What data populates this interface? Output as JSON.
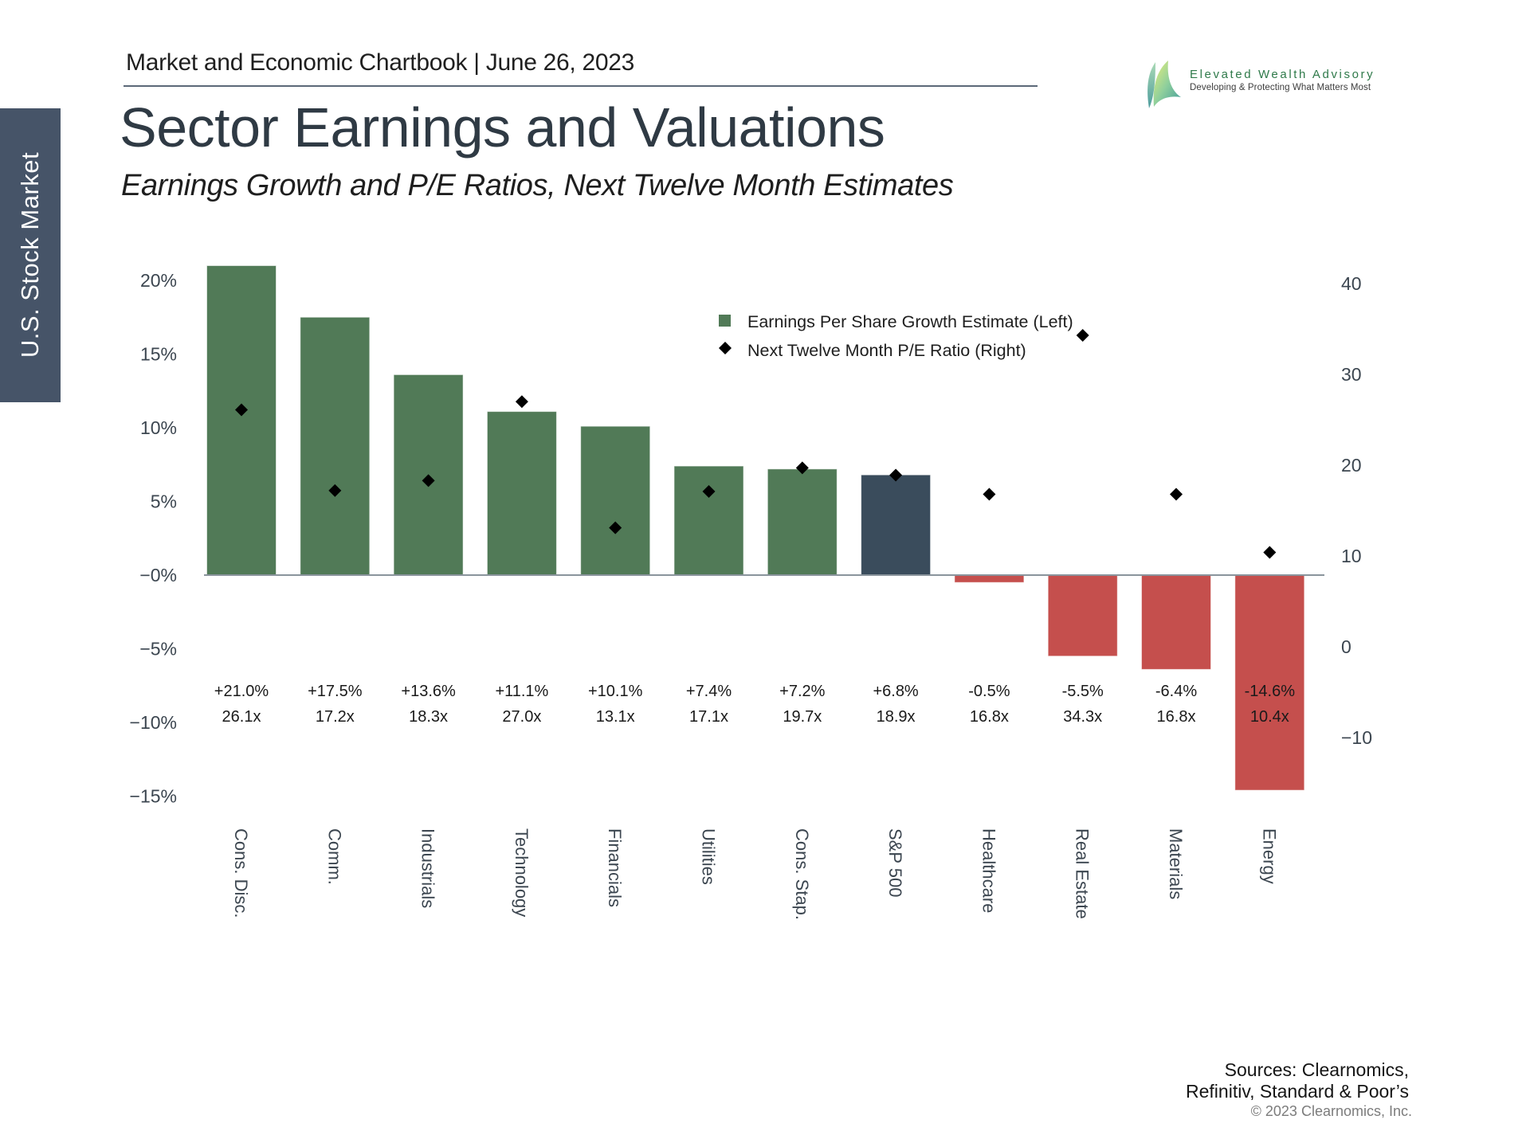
{
  "header": {
    "chartbook_line": "Market and Economic Chartbook | June 26, 2023",
    "title": "Sector Earnings and Valuations",
    "subtitle": "Earnings Growth and P/E Ratios, Next Twelve Month Estimates"
  },
  "side_tab": {
    "label": "U.S. Stock Market"
  },
  "brand": {
    "name": "Elevated Wealth Advisory",
    "tagline": "Developing & Protecting What Matters Most",
    "icon": "sail-logo-icon"
  },
  "footer": {
    "sources_line1": "Sources: Clearnomics,",
    "sources_line2": "Refinitiv, Standard & Poor’s",
    "copyright": "© 2023 Clearnomics, Inc."
  },
  "colors": {
    "positive_bar": "#517A57",
    "benchmark_bar": "#3A4C5C",
    "negative_bar": "#C54F4D",
    "marker": "#000000",
    "axis_line": "#8a949c",
    "side_tab": "#465468"
  },
  "chart_data": {
    "type": "bar",
    "title": "Sector Earnings and Valuations",
    "subtitle": "Earnings Growth and P/E Ratios, Next Twelve Month Estimates",
    "categories": [
      "Cons. Disc.",
      "Comm.",
      "Industrials",
      "Technology",
      "Financials",
      "Utilities",
      "Cons. Stap.",
      "S&P 500",
      "Healthcare",
      "Real Estate",
      "Materials",
      "Energy"
    ],
    "series": [
      {
        "name": "Earnings Per Share Growth Estimate (Left)",
        "type": "bar",
        "axis": "left",
        "unit": "%",
        "values": [
          21.0,
          17.5,
          13.6,
          11.1,
          10.1,
          7.4,
          7.2,
          6.8,
          -0.5,
          -5.5,
          -6.4,
          -14.6
        ]
      },
      {
        "name": "Next Twelve Month P/E Ratio (Right)",
        "type": "scatter",
        "marker": "diamond",
        "axis": "right",
        "unit": "x",
        "values": [
          26.1,
          17.2,
          18.3,
          27.0,
          13.1,
          17.1,
          19.7,
          18.9,
          16.8,
          34.3,
          16.8,
          10.4
        ]
      }
    ],
    "data_labels": {
      "growth": [
        "+21.0%",
        "+17.5%",
        "+13.6%",
        "+11.1%",
        "+10.1%",
        "+7.4%",
        "+7.2%",
        "+6.8%",
        "-0.5%",
        "-5.5%",
        "-6.4%",
        "-14.6%"
      ],
      "pe": [
        "26.1x",
        "17.2x",
        "18.3x",
        "27.0x",
        "13.1x",
        "17.1x",
        "19.7x",
        "18.9x",
        "16.8x",
        "34.3x",
        "16.8x",
        "10.4x"
      ]
    },
    "highlight_category": "S&P 500",
    "left_axis": {
      "ylim": [
        -15,
        20
      ],
      "ticks": [
        20,
        15,
        10,
        5,
        0,
        -5,
        -10,
        -15
      ],
      "tick_labels": [
        "20%",
        "15%",
        "10%",
        "5%",
        "−0%",
        "−5%",
        "−10%",
        "−15%"
      ]
    },
    "right_axis": {
      "ylim": [
        -10,
        40
      ],
      "ticks": [
        40,
        30,
        20,
        10,
        0,
        -10
      ],
      "tick_labels": [
        "40",
        "30",
        "20",
        "10",
        "0",
        "−10"
      ]
    },
    "xlabel": "",
    "ylabel_left": "",
    "ylabel_right": "",
    "grid": false,
    "legend": {
      "placement": "top-center",
      "entries": [
        {
          "label": "Earnings Per Share Growth Estimate (Left)",
          "symbol": "square"
        },
        {
          "label": "Next Twelve Month P/E Ratio (Right)",
          "symbol": "diamond"
        }
      ]
    }
  }
}
